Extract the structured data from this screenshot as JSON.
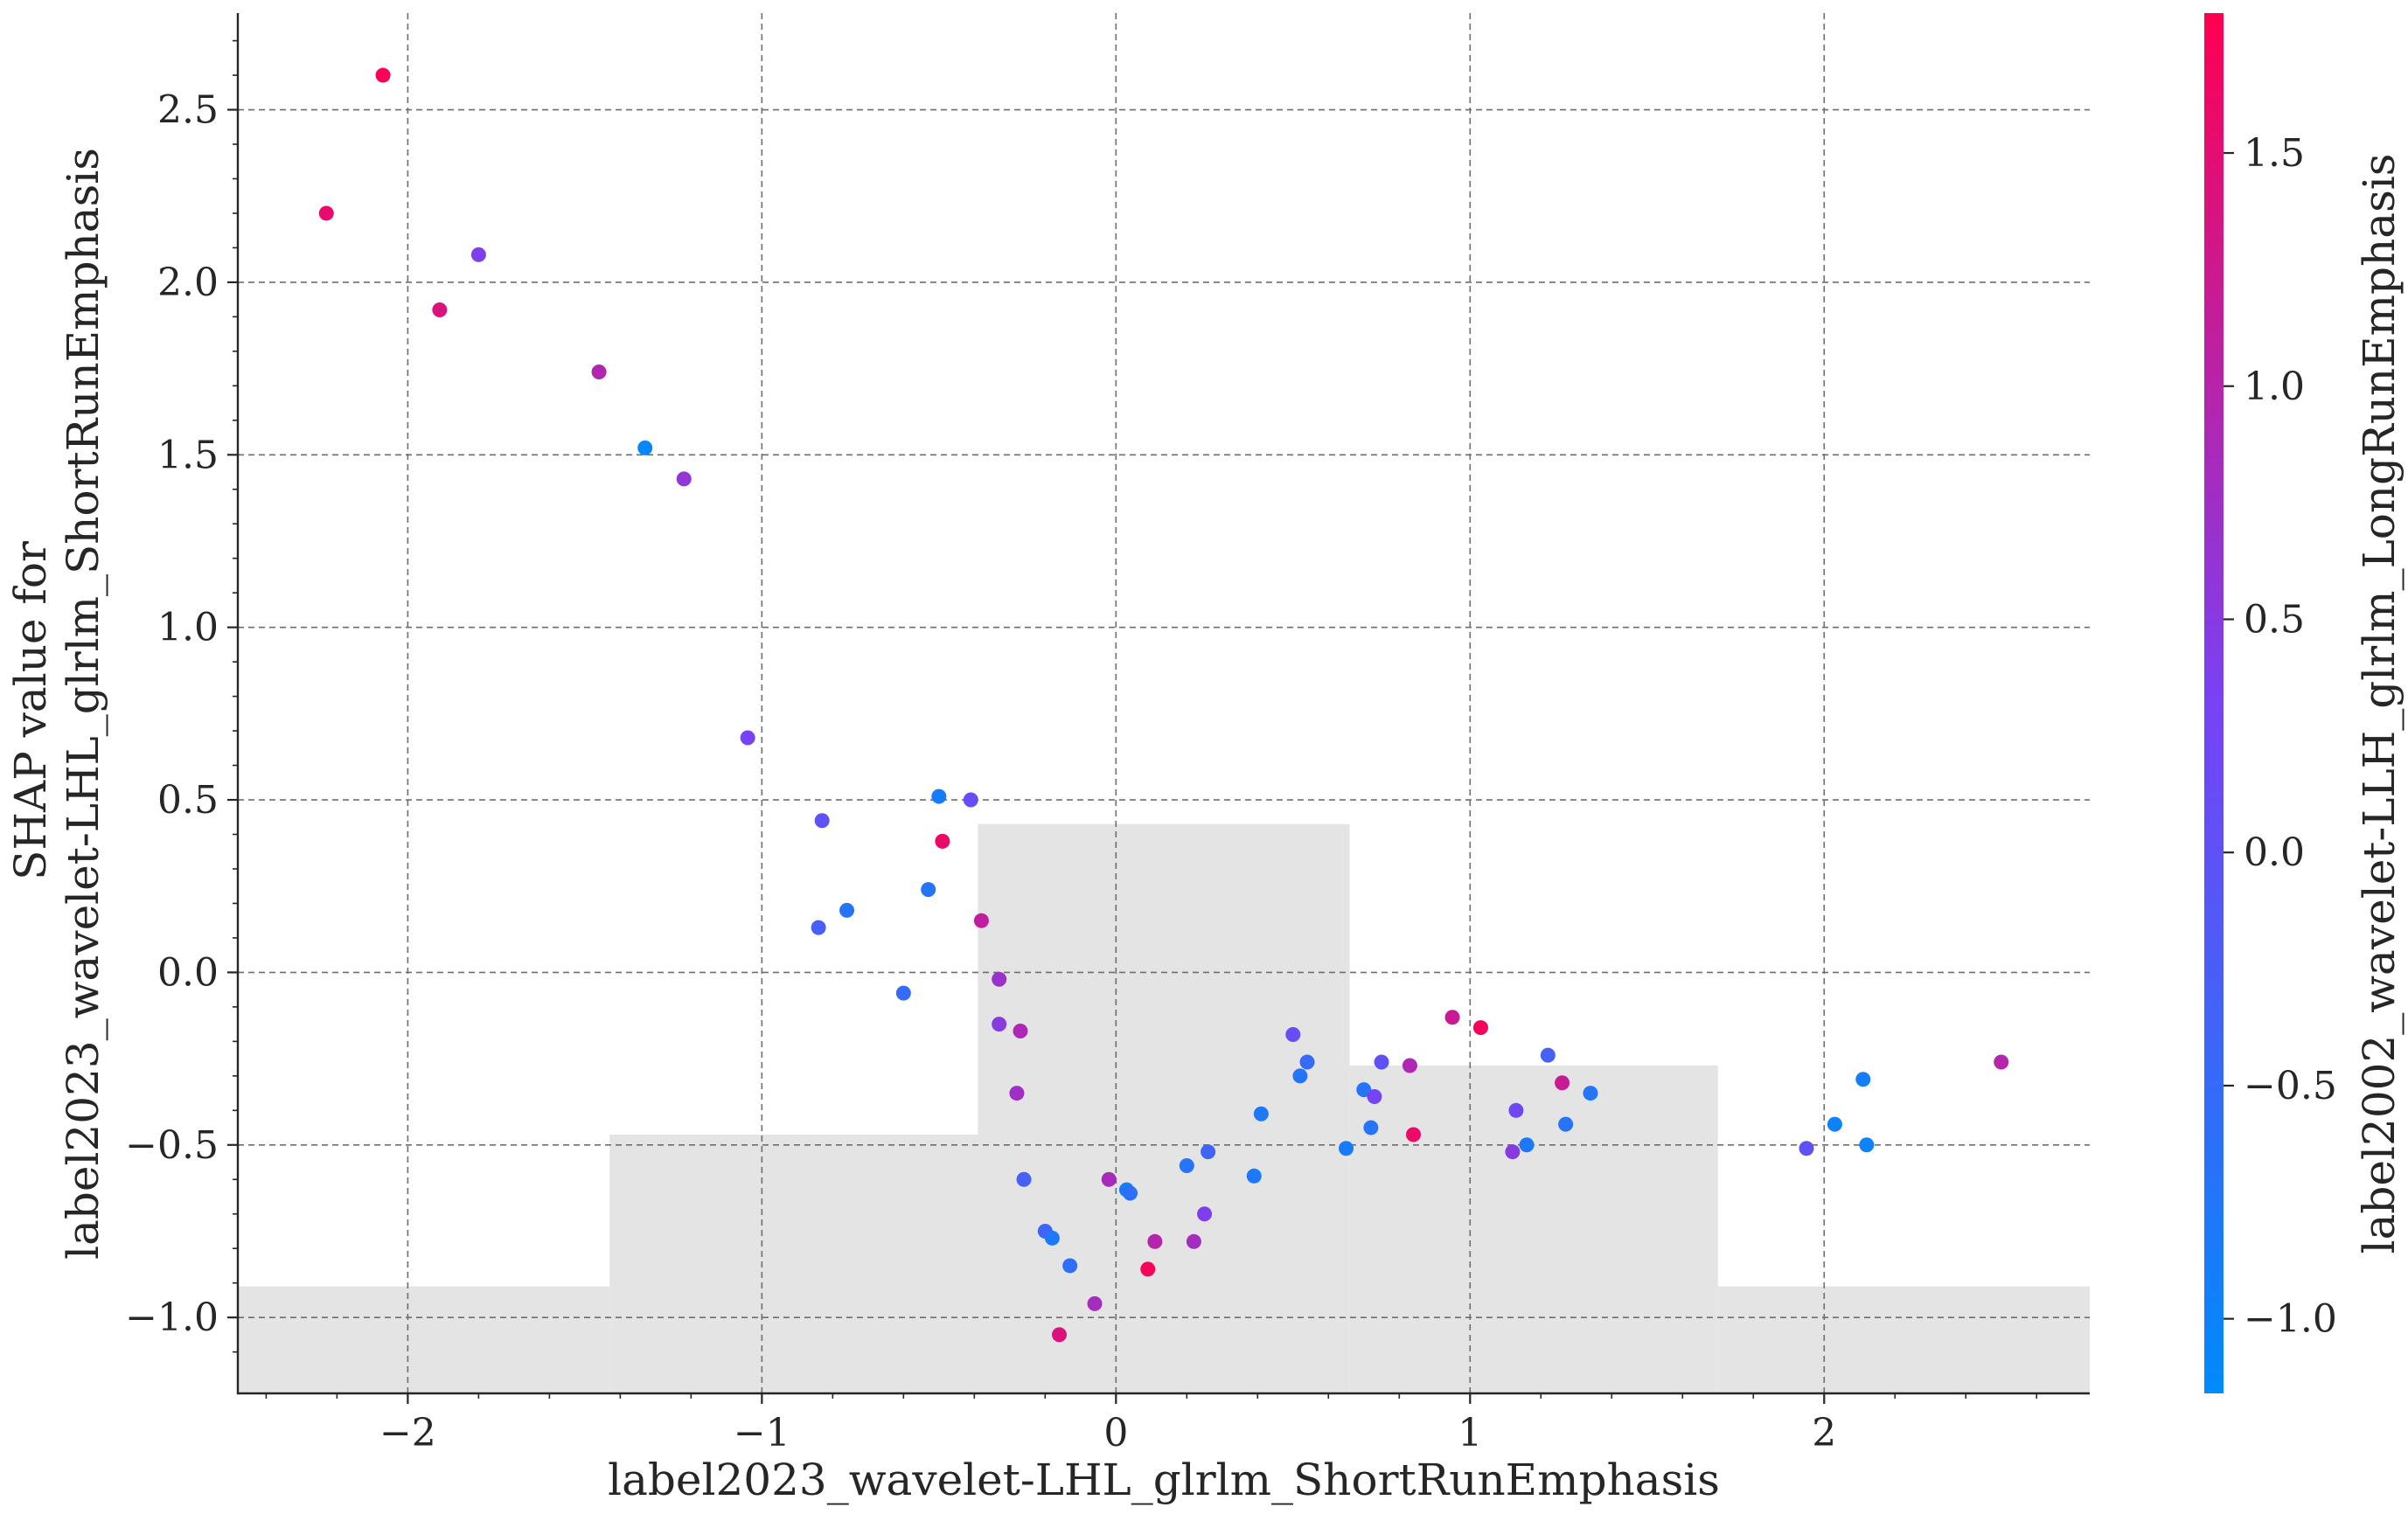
{
  "chart_data": {
    "type": "scatter",
    "xlabel": "label2023_wavelet-LHL_glrlm_ShortRunEmphasis",
    "ylabel": "SHAP value for\nlabel2023_wavelet-LHL_glrlm_ShortRunEmphasis",
    "colorbar_label": "label2002_wavelet-LLH_glrlm_LongRunEmphasis",
    "xlim": [
      -2.48,
      2.75
    ],
    "ylim": [
      -1.22,
      2.78
    ],
    "clim": [
      -1.16,
      1.8
    ],
    "x_ticks": [
      -2,
      -1,
      0,
      1,
      2
    ],
    "x_tick_labels": [
      "−2",
      "−1",
      "0",
      "1",
      "2"
    ],
    "y_ticks": [
      -1.0,
      -0.5,
      0.0,
      0.5,
      1.0,
      1.5,
      2.0,
      2.5
    ],
    "y_tick_labels": [
      "−1.0",
      "−0.5",
      "0.0",
      "0.5",
      "1.0",
      "1.5",
      "2.0",
      "2.5"
    ],
    "cbar_ticks": [
      -1.0,
      -0.5,
      0.0,
      0.5,
      1.0,
      1.5
    ],
    "cbar_tick_labels": [
      "−1.0",
      "−0.5",
      "0.0",
      "0.5",
      "1.0",
      "1.5"
    ],
    "colormap": [
      "#008afb",
      "#7842f5",
      "#ff0051"
    ],
    "grid": true,
    "histogram": {
      "color": "#e4e4e4",
      "bins": [
        {
          "x0": -2.48,
          "x1": -1.43,
          "top": -0.91
        },
        {
          "x0": -1.43,
          "x1": -0.39,
          "top": -0.47
        },
        {
          "x0": -0.39,
          "x1": 0.66,
          "top": 0.43
        },
        {
          "x0": 0.66,
          "x1": 1.7,
          "top": -0.27
        },
        {
          "x0": 1.7,
          "x1": 2.75,
          "top": -0.91
        }
      ]
    },
    "points": [
      {
        "x": -2.07,
        "y": 2.6,
        "c": 1.75
      },
      {
        "x": -2.23,
        "y": 2.2,
        "c": 1.55
      },
      {
        "x": -1.91,
        "y": 1.92,
        "c": 1.4
      },
      {
        "x": -1.8,
        "y": 2.08,
        "c": 0.4
      },
      {
        "x": -1.46,
        "y": 1.74,
        "c": 0.95
      },
      {
        "x": -1.33,
        "y": 1.52,
        "c": -1.1
      },
      {
        "x": -1.22,
        "y": 1.43,
        "c": 0.6
      },
      {
        "x": -1.04,
        "y": 0.68,
        "c": 0.3
      },
      {
        "x": -0.83,
        "y": 0.44,
        "c": 0.0
      },
      {
        "x": -0.84,
        "y": 0.13,
        "c": -0.3
      },
      {
        "x": -0.76,
        "y": 0.18,
        "c": -0.7
      },
      {
        "x": -0.6,
        "y": -0.06,
        "c": -0.5
      },
      {
        "x": -0.53,
        "y": 0.24,
        "c": -0.7
      },
      {
        "x": -0.5,
        "y": 0.51,
        "c": -0.9
      },
      {
        "x": -0.41,
        "y": 0.5,
        "c": 0.1
      },
      {
        "x": -0.49,
        "y": 0.38,
        "c": 1.6
      },
      {
        "x": -0.38,
        "y": 0.15,
        "c": 1.1
      },
      {
        "x": -0.33,
        "y": -0.02,
        "c": 0.7
      },
      {
        "x": -0.33,
        "y": -0.15,
        "c": 0.5
      },
      {
        "x": -0.27,
        "y": -0.17,
        "c": 0.9
      },
      {
        "x": -0.28,
        "y": -0.35,
        "c": 0.75
      },
      {
        "x": -0.26,
        "y": -0.6,
        "c": -0.3
      },
      {
        "x": -0.2,
        "y": -0.75,
        "c": -0.4
      },
      {
        "x": -0.18,
        "y": -0.77,
        "c": -0.8
      },
      {
        "x": -0.13,
        "y": -0.85,
        "c": -0.6
      },
      {
        "x": -0.16,
        "y": -1.05,
        "c": 1.4
      },
      {
        "x": -0.06,
        "y": -0.96,
        "c": 0.8
      },
      {
        "x": -0.02,
        "y": -0.6,
        "c": 0.85
      },
      {
        "x": 0.03,
        "y": -0.63,
        "c": -0.9
      },
      {
        "x": 0.04,
        "y": -0.64,
        "c": -0.6
      },
      {
        "x": 0.09,
        "y": -0.86,
        "c": 1.7
      },
      {
        "x": 0.11,
        "y": -0.78,
        "c": 1.0
      },
      {
        "x": 0.2,
        "y": -0.56,
        "c": -0.7
      },
      {
        "x": 0.22,
        "y": -0.78,
        "c": 0.8
      },
      {
        "x": 0.25,
        "y": -0.7,
        "c": 0.4
      },
      {
        "x": 0.26,
        "y": -0.52,
        "c": -0.4
      },
      {
        "x": 0.39,
        "y": -0.59,
        "c": -0.8
      },
      {
        "x": 0.41,
        "y": -0.41,
        "c": -0.8
      },
      {
        "x": 0.5,
        "y": -0.18,
        "c": 0.1
      },
      {
        "x": 0.52,
        "y": -0.3,
        "c": -0.7
      },
      {
        "x": 0.54,
        "y": -0.26,
        "c": -0.5
      },
      {
        "x": 0.65,
        "y": -0.51,
        "c": -0.9
      },
      {
        "x": 0.7,
        "y": -0.34,
        "c": -0.7
      },
      {
        "x": 0.72,
        "y": -0.45,
        "c": -0.7
      },
      {
        "x": 0.73,
        "y": -0.36,
        "c": 0.3
      },
      {
        "x": 0.75,
        "y": -0.26,
        "c": 0.0
      },
      {
        "x": 0.83,
        "y": -0.27,
        "c": 0.9
      },
      {
        "x": 0.84,
        "y": -0.47,
        "c": 1.6
      },
      {
        "x": 0.95,
        "y": -0.13,
        "c": 1.2
      },
      {
        "x": 1.03,
        "y": -0.16,
        "c": 1.7
      },
      {
        "x": 1.12,
        "y": -0.52,
        "c": 0.5
      },
      {
        "x": 1.13,
        "y": -0.4,
        "c": 0.2
      },
      {
        "x": 1.16,
        "y": -0.5,
        "c": -0.8
      },
      {
        "x": 1.22,
        "y": -0.24,
        "c": -0.3
      },
      {
        "x": 1.26,
        "y": -0.32,
        "c": 1.2
      },
      {
        "x": 1.27,
        "y": -0.44,
        "c": -0.7
      },
      {
        "x": 1.34,
        "y": -0.35,
        "c": -0.7
      },
      {
        "x": 1.95,
        "y": -0.51,
        "c": 0.0
      },
      {
        "x": 2.03,
        "y": -0.44,
        "c": -1.0
      },
      {
        "x": 2.11,
        "y": -0.31,
        "c": -0.9
      },
      {
        "x": 2.12,
        "y": -0.5,
        "c": -1.0
      },
      {
        "x": 2.5,
        "y": -0.26,
        "c": 1.0
      }
    ]
  }
}
